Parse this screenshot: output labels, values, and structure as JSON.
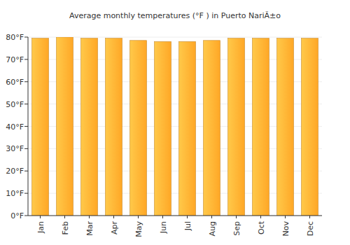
{
  "chart_data": {
    "type": "bar",
    "title": "Average monthly temperatures (°F ) in Puerto NariÃ±o",
    "categories": [
      "Jan",
      "Feb",
      "Mar",
      "Apr",
      "May",
      "Jun",
      "Jul",
      "Aug",
      "Sep",
      "Oct",
      "Nov",
      "Dec"
    ],
    "values": [
      79.5,
      80,
      79.5,
      79.5,
      78.5,
      78,
      78,
      78.5,
      79.5,
      79.5,
      79.5,
      79.5
    ],
    "color": "#ffa726",
    "ylim": [
      0,
      80
    ],
    "yticks": [
      {
        "value": 0,
        "label": "0°F"
      },
      {
        "value": 10,
        "label": "10°F"
      },
      {
        "value": 20,
        "label": "20°F"
      },
      {
        "value": 30,
        "label": "30°F"
      },
      {
        "value": 40,
        "label": "40°F"
      },
      {
        "value": 50,
        "label": "50°F"
      },
      {
        "value": 60,
        "label": "60°F"
      },
      {
        "value": 70,
        "label": "70°F"
      },
      {
        "value": 80,
        "label": "80°F"
      }
    ],
    "grid": true
  }
}
